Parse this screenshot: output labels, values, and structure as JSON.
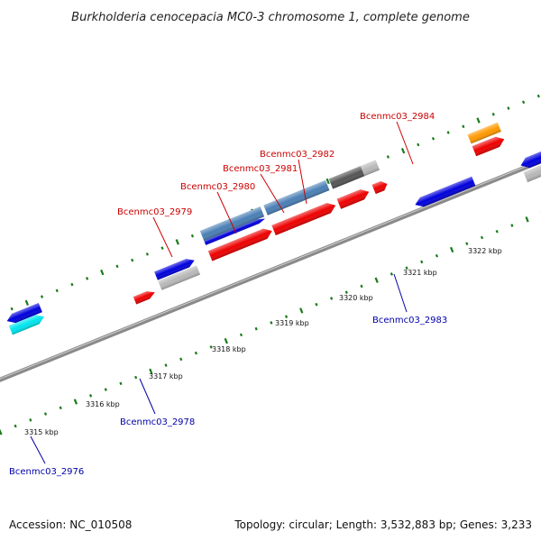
{
  "title": "Burkholderia cenocepacia MC0-3 chromosome 1, complete genome",
  "footer": {
    "accession": "Accession: NC_010508",
    "summary": "Topology: circular; Length: 3,532,883 bp; Genes: 3,233"
  },
  "colors": {
    "forward_label": "#cc0000",
    "reverse_label": "#0000aa",
    "backbone": "#8a8a8a",
    "tick": "#1a7a1a",
    "leader": "#cc0000",
    "leader_reverse": "#0000aa"
  },
  "scale": {
    "unit": "kbp",
    "ticks": [
      {
        "label": "3315 kbp"
      },
      {
        "label": "3316 kbp"
      },
      {
        "label": "3317 kbp"
      },
      {
        "label": "3318 kbp"
      },
      {
        "label": "3319 kbp"
      },
      {
        "label": "3320 kbp"
      },
      {
        "label": "3321 kbp"
      },
      {
        "label": "3322 kbp"
      }
    ]
  },
  "gene_labels": [
    {
      "name": "Bcenmc03_2979",
      "strand": "forward"
    },
    {
      "name": "Bcenmc03_2980",
      "strand": "forward"
    },
    {
      "name": "Bcenmc03_2981",
      "strand": "forward"
    },
    {
      "name": "Bcenmc03_2982",
      "strand": "forward"
    },
    {
      "name": "Bcenmc03_2984",
      "strand": "forward"
    },
    {
      "name": "Bcenmc03_2983",
      "strand": "reverse"
    },
    {
      "name": "Bcenmc03_2978",
      "strand": "reverse"
    },
    {
      "name": "Bcenmc03_2976",
      "strand": "reverse"
    }
  ],
  "feature_colors": {
    "cds_forward": "#ee0000",
    "cds_reverse": "#0000dd",
    "gene_gray": "#b8b8b8",
    "gene_dark": "#555555",
    "gene_steel": "#4a7fb5",
    "gene_orange": "#ff9900",
    "gene_cyan": "#00e5ee"
  }
}
